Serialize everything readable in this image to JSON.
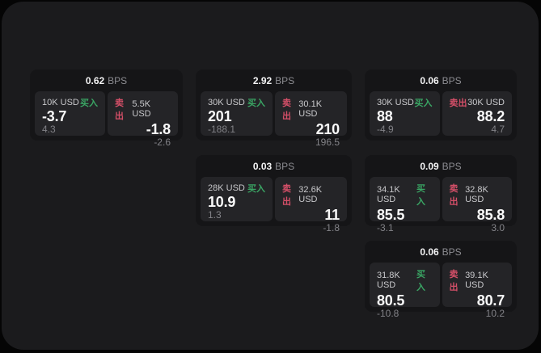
{
  "page": {
    "background": "#050505",
    "panel_color": "#1b1b1d",
    "card_color": "#151517",
    "tile_color": "#242427"
  },
  "colors": {
    "buy_accent": "#3aa564",
    "sell_accent": "#d44f68"
  },
  "cards": [
    {
      "col": 1,
      "row": 1,
      "bps": "0.62",
      "unit": "BPS",
      "buy": {
        "size": "10K USD",
        "side": "买入",
        "price": "-3.7",
        "delta": "4.3"
      },
      "sell": {
        "size": "5.5K USD",
        "side": "卖出",
        "price": "-1.8",
        "delta": "-2.6"
      }
    },
    {
      "col": 2,
      "row": 1,
      "bps": "2.92",
      "unit": "BPS",
      "buy": {
        "size": "30K USD",
        "side": "买入",
        "price": "201",
        "delta": "-188.1"
      },
      "sell": {
        "size": "30.1K USD",
        "side": "卖出",
        "price": "210",
        "delta": "196.5"
      }
    },
    {
      "col": 3,
      "row": 1,
      "bps": "0.06",
      "unit": "BPS",
      "buy": {
        "size": "30K USD",
        "side": "买入",
        "price": "88",
        "delta": "-4.9"
      },
      "sell": {
        "size": "30K USD",
        "side": "卖出",
        "price": "88.2",
        "delta": "4.7"
      }
    },
    {
      "col": 2,
      "row": 2,
      "bps": "0.03",
      "unit": "BPS",
      "buy": {
        "size": "28K USD",
        "side": "买入",
        "price": "10.9",
        "delta": "1.3"
      },
      "sell": {
        "size": "32.6K USD",
        "side": "卖出",
        "price": "11",
        "delta": "-1.8"
      }
    },
    {
      "col": 3,
      "row": 2,
      "bps": "0.09",
      "unit": "BPS",
      "buy": {
        "size": "34.1K USD",
        "side": "买入",
        "price": "85.5",
        "delta": "-3.1"
      },
      "sell": {
        "size": "32.8K USD",
        "side": "卖出",
        "price": "85.8",
        "delta": "3.0"
      }
    },
    {
      "col": 3,
      "row": 3,
      "bps": "0.06",
      "unit": "BPS",
      "buy": {
        "size": "31.8K USD",
        "side": "买入",
        "price": "80.5",
        "delta": "-10.8"
      },
      "sell": {
        "size": "39.1K USD",
        "side": "卖出",
        "price": "80.7",
        "delta": "10.2"
      }
    }
  ]
}
